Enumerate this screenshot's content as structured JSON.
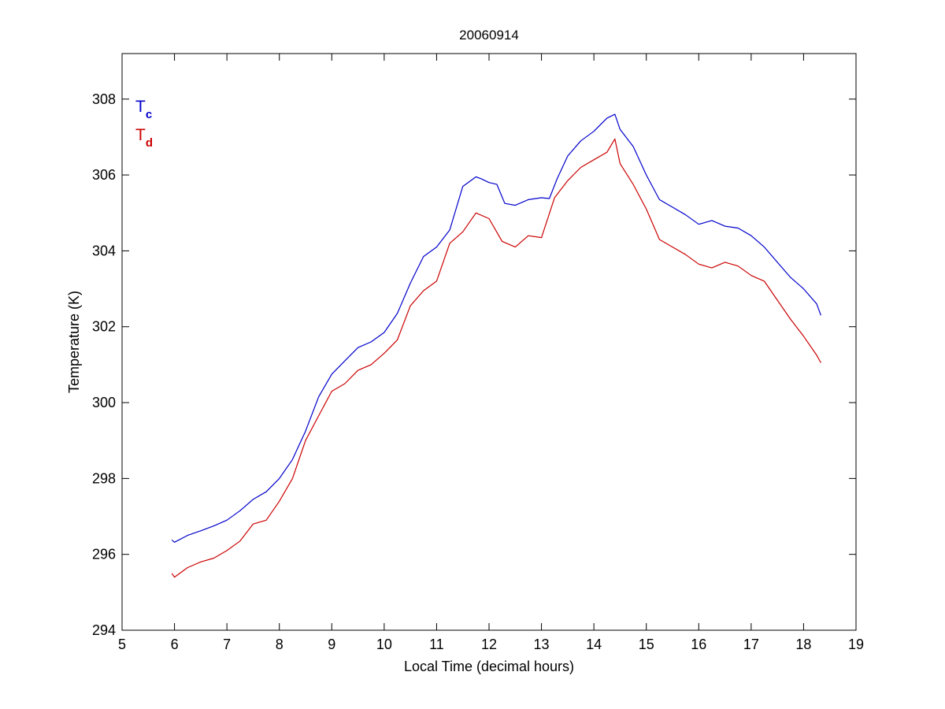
{
  "chart_data": {
    "type": "line",
    "title": "20060914",
    "xlabel": "Local Time (decimal hours)",
    "ylabel": "Temperature (K)",
    "xlim": [
      5,
      19
    ],
    "ylim": [
      294,
      309.2
    ],
    "x_ticks": [
      "5",
      "6",
      "7",
      "8",
      "9",
      "10",
      "11",
      "12",
      "13",
      "14",
      "15",
      "16",
      "17",
      "18",
      "19"
    ],
    "y_ticks": [
      "294",
      "296",
      "298",
      "300",
      "302",
      "304",
      "306",
      "308"
    ],
    "grid": false,
    "legend_placement": "top-left",
    "legend": [
      {
        "base": "T",
        "sub": "c",
        "color": "#0000cc"
      },
      {
        "base": "T",
        "sub": "d",
        "color": "#cc0000"
      }
    ],
    "series": [
      {
        "name": "Tc",
        "color": "#0000cc",
        "x": [
          5.95,
          6.0,
          6.25,
          6.5,
          6.75,
          7.0,
          7.25,
          7.5,
          7.75,
          8.0,
          8.25,
          8.5,
          8.75,
          9.0,
          9.25,
          9.5,
          9.75,
          10.0,
          10.25,
          10.5,
          10.75,
          11.0,
          11.25,
          11.5,
          11.75,
          11.85,
          12.0,
          12.15,
          12.3,
          12.5,
          12.75,
          13.0,
          13.15,
          13.3,
          13.5,
          13.75,
          14.0,
          14.25,
          14.4,
          14.5,
          14.75,
          15.0,
          15.25,
          15.5,
          15.75,
          16.0,
          16.25,
          16.5,
          16.75,
          17.0,
          17.25,
          17.5,
          17.75,
          18.0,
          18.25,
          18.33
        ],
        "y": [
          296.38,
          296.32,
          296.5,
          296.62,
          296.75,
          296.9,
          297.15,
          297.45,
          297.65,
          298.0,
          298.5,
          299.25,
          300.15,
          300.75,
          301.1,
          301.45,
          301.6,
          301.85,
          302.35,
          303.15,
          303.85,
          304.1,
          304.55,
          305.7,
          305.95,
          305.9,
          305.8,
          305.75,
          305.25,
          305.2,
          305.35,
          305.4,
          305.38,
          305.9,
          306.5,
          306.9,
          307.15,
          307.5,
          307.6,
          307.2,
          306.75,
          306.0,
          305.35,
          305.15,
          304.95,
          304.7,
          304.8,
          304.65,
          304.6,
          304.4,
          304.1,
          303.7,
          303.3,
          303.0,
          302.6,
          302.3
        ]
      },
      {
        "name": "Td",
        "color": "#cc0000",
        "x": [
          5.95,
          6.0,
          6.25,
          6.5,
          6.75,
          7.0,
          7.25,
          7.5,
          7.75,
          8.0,
          8.25,
          8.5,
          8.75,
          9.0,
          9.25,
          9.5,
          9.75,
          10.0,
          10.25,
          10.5,
          10.75,
          11.0,
          11.25,
          11.5,
          11.75,
          12.0,
          12.25,
          12.5,
          12.75,
          13.0,
          13.25,
          13.5,
          13.75,
          14.0,
          14.25,
          14.4,
          14.5,
          14.75,
          15.0,
          15.25,
          15.5,
          15.75,
          16.0,
          16.25,
          16.5,
          16.75,
          17.0,
          17.25,
          17.5,
          17.75,
          18.0,
          18.25,
          18.33
        ],
        "y": [
          295.5,
          295.4,
          295.65,
          295.8,
          295.9,
          296.1,
          296.35,
          296.8,
          296.9,
          297.4,
          298.0,
          299.0,
          299.65,
          300.3,
          300.5,
          300.85,
          301.0,
          301.3,
          301.65,
          302.55,
          302.95,
          303.2,
          304.2,
          304.5,
          305.0,
          304.85,
          304.25,
          304.1,
          304.4,
          304.35,
          305.4,
          305.85,
          306.2,
          306.4,
          306.6,
          306.95,
          306.3,
          305.75,
          305.1,
          304.3,
          304.1,
          303.9,
          303.65,
          303.55,
          303.7,
          303.6,
          303.35,
          303.2,
          302.7,
          302.2,
          301.75,
          301.25,
          301.05
        ]
      }
    ]
  }
}
